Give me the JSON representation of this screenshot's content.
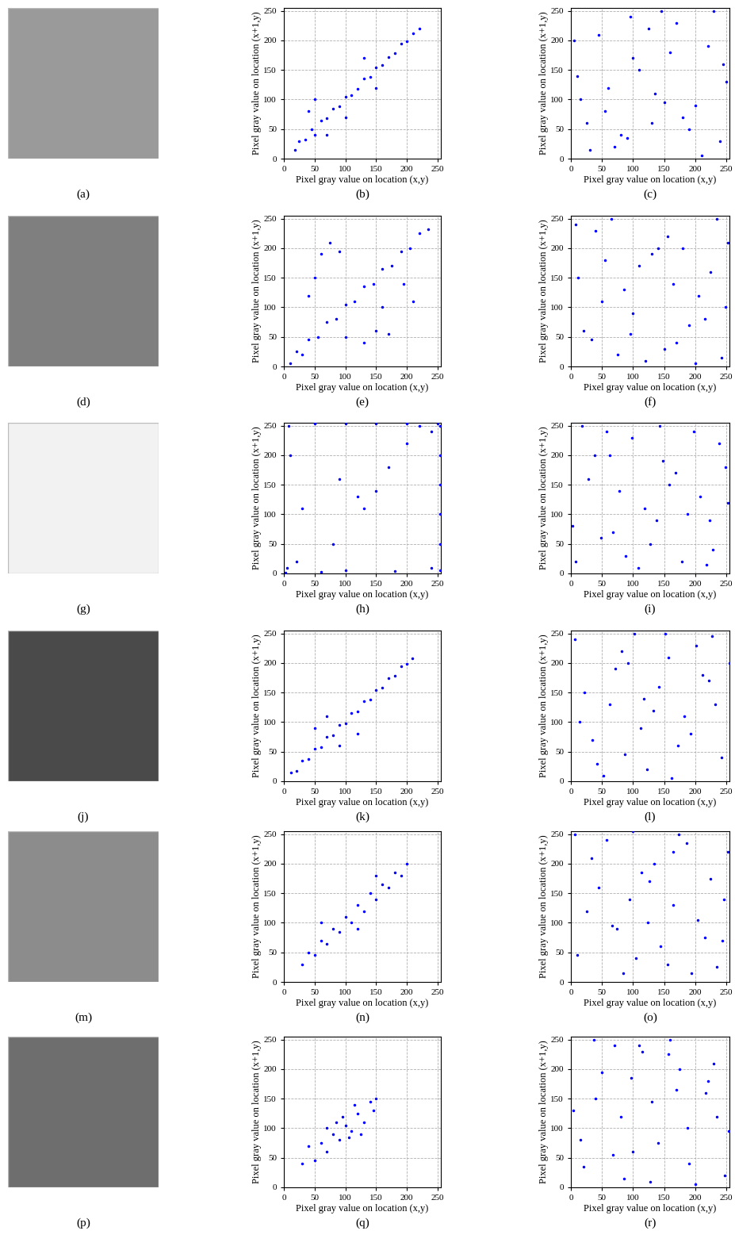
{
  "images": [
    {
      "caption": "(a)"
    },
    {
      "caption": "(d)"
    },
    {
      "caption": "(g)"
    },
    {
      "caption": "(j)"
    },
    {
      "caption": "(m)"
    },
    {
      "caption": "(p)"
    }
  ],
  "chart_data": [
    {
      "type": "scatter",
      "caption": "(b)",
      "x_label": "Pixel gray value on location (x,y)",
      "y_label": "Pixel gray value on location (x+1,y)",
      "x": [
        18,
        25,
        35,
        45,
        50,
        60,
        70,
        80,
        90,
        100,
        110,
        120,
        130,
        140,
        150,
        160,
        170,
        180,
        190,
        200,
        210,
        220,
        50,
        70,
        100,
        130,
        40,
        150
      ],
      "values": [
        15,
        30,
        32,
        50,
        40,
        65,
        68,
        85,
        88,
        105,
        108,
        118,
        135,
        138,
        155,
        158,
        172,
        178,
        195,
        198,
        212,
        220,
        100,
        40,
        70,
        170,
        80,
        120
      ],
      "color": "#0000ff",
      "marker": "dot",
      "xlim": [
        0,
        255
      ],
      "ylim": [
        0,
        255
      ],
      "xticks": [
        0,
        50,
        100,
        150,
        200,
        250
      ],
      "yticks": [
        0,
        50,
        100,
        150,
        200,
        250
      ],
      "grid": true
    },
    {
      "type": "scatter",
      "caption": "(c)",
      "x_label": "Pixel gray value on location (x,y)",
      "y_label": "Pixel gray value on location (x+1,y)",
      "x": [
        5,
        30,
        60,
        95,
        130,
        160,
        200,
        240,
        15,
        45,
        80,
        110,
        145,
        180,
        220,
        250,
        25,
        70,
        100,
        135,
        170,
        210,
        245,
        10,
        55,
        90,
        125,
        190,
        230,
        150
      ],
      "values": [
        200,
        15,
        120,
        240,
        60,
        180,
        90,
        30,
        100,
        210,
        40,
        150,
        250,
        70,
        190,
        130,
        60,
        20,
        170,
        110,
        230,
        5,
        160,
        140,
        80,
        35,
        220,
        50,
        250,
        95
      ],
      "color": "#0000ff",
      "marker": "dot",
      "xlim": [
        0,
        255
      ],
      "ylim": [
        0,
        255
      ],
      "xticks": [
        0,
        50,
        100,
        150,
        200,
        250
      ],
      "yticks": [
        0,
        50,
        100,
        150,
        200,
        250
      ],
      "grid": true
    },
    {
      "type": "scatter",
      "caption": "(e)",
      "x_label": "Pixel gray value on location (x,y)",
      "y_label": "Pixel gray value on location (x+1,y)",
      "x": [
        10,
        20,
        30,
        40,
        55,
        70,
        85,
        100,
        115,
        130,
        145,
        160,
        175,
        190,
        205,
        220,
        235,
        60,
        75,
        90,
        150,
        170,
        130,
        40,
        210,
        195,
        100,
        50,
        160
      ],
      "values": [
        5,
        25,
        20,
        45,
        50,
        75,
        80,
        105,
        110,
        135,
        140,
        165,
        170,
        195,
        200,
        225,
        232,
        190,
        210,
        195,
        60,
        55,
        40,
        120,
        110,
        140,
        50,
        150,
        100
      ],
      "color": "#0000ff",
      "marker": "dot",
      "xlim": [
        0,
        255
      ],
      "ylim": [
        0,
        255
      ],
      "xticks": [
        0,
        50,
        100,
        150,
        200,
        250
      ],
      "yticks": [
        0,
        50,
        100,
        150,
        200,
        250
      ],
      "grid": true
    },
    {
      "type": "scatter",
      "caption": "(f)",
      "x_label": "Pixel gray value on location (x,y)",
      "y_label": "Pixel gray value on location (x+1,y)",
      "x": [
        12,
        40,
        75,
        100,
        140,
        170,
        205,
        235,
        20,
        55,
        85,
        120,
        155,
        190,
        225,
        248,
        33,
        65,
        110,
        150,
        180,
        215,
        242,
        8,
        50,
        95,
        130,
        165,
        200,
        252
      ],
      "values": [
        150,
        230,
        20,
        90,
        200,
        40,
        120,
        250,
        60,
        180,
        130,
        10,
        220,
        70,
        160,
        100,
        45,
        250,
        170,
        30,
        200,
        80,
        15,
        240,
        110,
        55,
        190,
        140,
        5,
        210
      ],
      "color": "#0000ff",
      "marker": "dot",
      "xlim": [
        0,
        255
      ],
      "ylim": [
        0,
        255
      ],
      "xticks": [
        0,
        50,
        100,
        150,
        200,
        250
      ],
      "yticks": [
        0,
        50,
        100,
        150,
        200,
        250
      ],
      "grid": true
    },
    {
      "type": "scatter",
      "caption": "(h)",
      "x_label": "Pixel gray value on location (x,y)",
      "y_label": "Pixel gray value on location (x+1,y)",
      "x": [
        2,
        5,
        10,
        8,
        50,
        100,
        150,
        200,
        250,
        254,
        254,
        254,
        254,
        254,
        254,
        240,
        100,
        60,
        180,
        20,
        120,
        130,
        150,
        170,
        90,
        200,
        80,
        220,
        30,
        240
      ],
      "values": [
        2,
        10,
        200,
        250,
        253,
        254,
        253,
        254,
        254,
        250,
        200,
        150,
        100,
        50,
        5,
        10,
        5,
        3,
        4,
        20,
        130,
        110,
        140,
        180,
        160,
        220,
        50,
        250,
        110,
        240
      ],
      "color": "#0000ff",
      "marker": "dot",
      "xlim": [
        0,
        255
      ],
      "ylim": [
        0,
        255
      ],
      "xticks": [
        0,
        50,
        100,
        150,
        200,
        250
      ],
      "yticks": [
        0,
        50,
        100,
        150,
        200,
        250
      ],
      "grid": true
    },
    {
      "type": "scatter",
      "caption": "(i)",
      "x_label": "Pixel gray value on location (x,y)",
      "y_label": "Pixel gray value on location (x+1,y)",
      "x": [
        3,
        28,
        58,
        88,
        118,
        148,
        178,
        208,
        238,
        18,
        48,
        78,
        108,
        138,
        168,
        198,
        228,
        253,
        38,
        68,
        98,
        128,
        158,
        188,
        218,
        248,
        8,
        63,
        143,
        223
      ],
      "values": [
        80,
        160,
        240,
        30,
        110,
        190,
        20,
        130,
        220,
        250,
        60,
        140,
        10,
        90,
        170,
        240,
        40,
        120,
        200,
        70,
        230,
        50,
        150,
        100,
        15,
        180,
        20,
        200,
        250,
        90
      ],
      "color": "#0000ff",
      "marker": "dot",
      "xlim": [
        0,
        255
      ],
      "ylim": [
        0,
        255
      ],
      "xticks": [
        0,
        50,
        100,
        150,
        200,
        250
      ],
      "yticks": [
        0,
        50,
        100,
        150,
        200,
        250
      ],
      "grid": true
    },
    {
      "type": "scatter",
      "caption": "(k)",
      "x_label": "Pixel gray value on location (x,y)",
      "y_label": "Pixel gray value on location (x+1,y)",
      "x": [
        12,
        20,
        30,
        40,
        50,
        60,
        70,
        80,
        90,
        100,
        110,
        120,
        130,
        140,
        150,
        160,
        170,
        180,
        190,
        200,
        208,
        50,
        90,
        120,
        70
      ],
      "values": [
        15,
        18,
        35,
        38,
        55,
        58,
        75,
        78,
        95,
        98,
        115,
        118,
        135,
        138,
        155,
        158,
        175,
        178,
        195,
        198,
        208,
        90,
        60,
        80,
        110
      ],
      "color": "#0000ff",
      "marker": "dot",
      "xlim": [
        0,
        255
      ],
      "ylim": [
        0,
        255
      ],
      "xticks": [
        0,
        50,
        100,
        150,
        200,
        250
      ],
      "yticks": [
        0,
        50,
        100,
        150,
        200,
        250
      ],
      "grid": true
    },
    {
      "type": "scatter",
      "caption": "(l)",
      "x_label": "Pixel gray value on location (x,y)",
      "y_label": "Pixel gray value on location (x+1,y)",
      "x": [
        7,
        35,
        62,
        92,
        122,
        152,
        182,
        212,
        242,
        22,
        52,
        82,
        112,
        142,
        172,
        202,
        232,
        255,
        42,
        72,
        102,
        132,
        162,
        192,
        222,
        14,
        87,
        157,
        227,
        117
      ],
      "values": [
        240,
        70,
        130,
        200,
        20,
        250,
        110,
        180,
        40,
        150,
        10,
        220,
        90,
        160,
        60,
        230,
        130,
        200,
        30,
        190,
        250,
        120,
        5,
        80,
        170,
        100,
        45,
        210,
        245,
        140
      ],
      "color": "#0000ff",
      "marker": "dot",
      "xlim": [
        0,
        255
      ],
      "ylim": [
        0,
        255
      ],
      "xticks": [
        0,
        50,
        100,
        150,
        200,
        250
      ],
      "yticks": [
        0,
        50,
        100,
        150,
        200,
        250
      ],
      "grid": true
    },
    {
      "type": "scatter",
      "caption": "(n)",
      "x_label": "Pixel gray value on location (x,y)",
      "y_label": "Pixel gray value on location (x+1,y)",
      "x": [
        30,
        40,
        50,
        60,
        70,
        80,
        90,
        100,
        110,
        120,
        130,
        140,
        150,
        160,
        170,
        180,
        190,
        200,
        60,
        120,
        150
      ],
      "values": [
        30,
        50,
        45,
        70,
        65,
        90,
        85,
        110,
        100,
        130,
        120,
        150,
        140,
        165,
        160,
        185,
        180,
        200,
        100,
        90,
        180
      ],
      "color": "#0000ff",
      "marker": "dot",
      "xlim": [
        0,
        255
      ],
      "ylim": [
        0,
        255
      ],
      "xticks": [
        0,
        50,
        100,
        150,
        200,
        250
      ],
      "yticks": [
        0,
        50,
        100,
        150,
        200,
        250
      ],
      "grid": true
    },
    {
      "type": "scatter",
      "caption": "(o)",
      "x_label": "Pixel gray value on location (x,y)",
      "y_label": "Pixel gray value on location (x+1,y)",
      "x": [
        10,
        33,
        66,
        99,
        126,
        156,
        186,
        216,
        246,
        25,
        58,
        84,
        114,
        144,
        174,
        204,
        234,
        252,
        44,
        74,
        104,
        134,
        164,
        194,
        224,
        6,
        94,
        164,
        244,
        124
      ],
      "values": [
        45,
        210,
        95,
        255,
        170,
        30,
        235,
        75,
        140,
        120,
        240,
        15,
        185,
        60,
        250,
        105,
        25,
        220,
        160,
        90,
        40,
        200,
        130,
        15,
        175,
        250,
        140,
        220,
        70,
        100
      ],
      "color": "#0000ff",
      "marker": "dot",
      "xlim": [
        0,
        255
      ],
      "ylim": [
        0,
        255
      ],
      "xticks": [
        0,
        50,
        100,
        150,
        200,
        250
      ],
      "yticks": [
        0,
        50,
        100,
        150,
        200,
        250
      ],
      "grid": true
    },
    {
      "type": "scatter",
      "caption": "(q)",
      "x_label": "Pixel gray value on location (x,y)",
      "y_label": "Pixel gray value on location (x+1,y)",
      "x": [
        30,
        40,
        50,
        60,
        70,
        80,
        90,
        100,
        95,
        110,
        120,
        115,
        130,
        140,
        145,
        150,
        85,
        105,
        70,
        125
      ],
      "values": [
        40,
        70,
        45,
        75,
        60,
        90,
        80,
        105,
        120,
        95,
        125,
        140,
        110,
        145,
        130,
        150,
        110,
        85,
        100,
        90
      ],
      "color": "#0000ff",
      "marker": "dot",
      "xlim": [
        0,
        255
      ],
      "ylim": [
        0,
        255
      ],
      "xticks": [
        0,
        50,
        100,
        150,
        200,
        250
      ],
      "yticks": [
        0,
        50,
        100,
        150,
        200,
        250
      ],
      "grid": true
    },
    {
      "type": "scatter",
      "caption": "(r)",
      "x_label": "Pixel gray value on location (x,y)",
      "y_label": "Pixel gray value on location (x+1,y)",
      "x": [
        4,
        37,
        67,
        97,
        127,
        157,
        187,
        217,
        247,
        20,
        50,
        80,
        110,
        140,
        170,
        200,
        230,
        254,
        40,
        70,
        100,
        130,
        160,
        190,
        220,
        15,
        85,
        175,
        235,
        115
      ],
      "values": [
        130,
        250,
        55,
        185,
        10,
        225,
        100,
        160,
        20,
        35,
        195,
        120,
        240,
        75,
        165,
        5,
        210,
        95,
        150,
        240,
        60,
        145,
        250,
        40,
        180,
        80,
        15,
        200,
        120,
        230
      ],
      "color": "#0000ff",
      "marker": "dot",
      "xlim": [
        0,
        255
      ],
      "ylim": [
        0,
        255
      ],
      "xticks": [
        0,
        50,
        100,
        150,
        200,
        250
      ],
      "yticks": [
        0,
        50,
        100,
        150,
        200,
        250
      ],
      "grid": true
    }
  ]
}
